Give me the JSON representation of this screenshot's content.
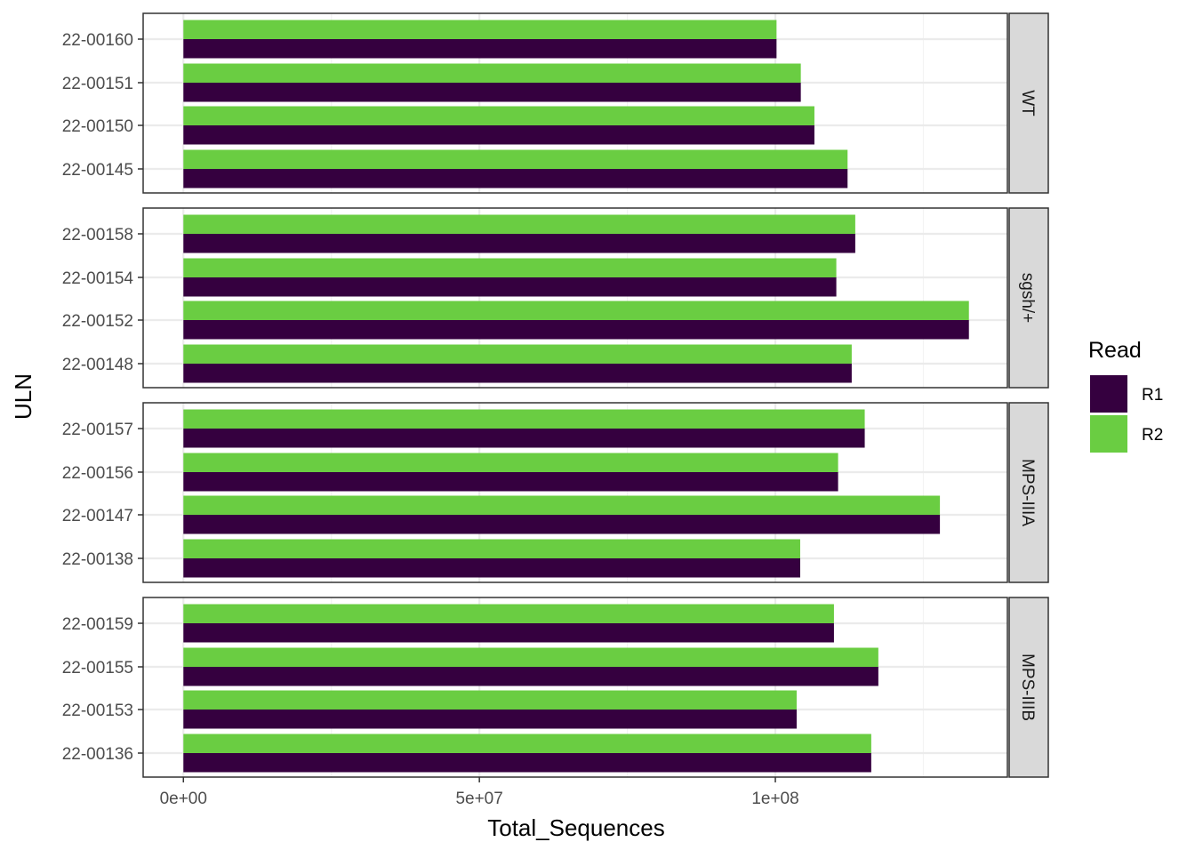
{
  "colors": {
    "R1": "#35003f",
    "R2": "#6acd42",
    "panel_border": "#333333",
    "grid_major": "#ebebeb",
    "grid_minor": "#f3f3f3",
    "strip_fill": "#d9d9d9"
  },
  "chart_data": {
    "type": "bar",
    "orientation": "horizontal",
    "xlabel": "Total_Sequences",
    "ylabel": "ULN",
    "xlim": [
      -6800000,
      139200000
    ],
    "x_ticks": [
      0,
      50000000,
      100000000
    ],
    "x_tick_labels": [
      "0e+00",
      "5e+07",
      "1e+08"
    ],
    "grid": true,
    "legend": {
      "title": "Read",
      "placement": "right",
      "entries": [
        "R1",
        "R2"
      ]
    },
    "panels": [
      {
        "label": "WT",
        "samples": [
          {
            "id": "22-00160",
            "R1": 100200000,
            "R2": 100200000
          },
          {
            "id": "22-00151",
            "R1": 104300000,
            "R2": 104300000
          },
          {
            "id": "22-00150",
            "R1": 106600000,
            "R2": 106600000
          },
          {
            "id": "22-00145",
            "R1": 112200000,
            "R2": 112200000
          }
        ]
      },
      {
        "label": "sgsh/+",
        "samples": [
          {
            "id": "22-00158",
            "R1": 113500000,
            "R2": 113500000
          },
          {
            "id": "22-00154",
            "R1": 110300000,
            "R2": 110300000
          },
          {
            "id": "22-00152",
            "R1": 132700000,
            "R2": 132700000
          },
          {
            "id": "22-00148",
            "R1": 112900000,
            "R2": 112900000
          }
        ]
      },
      {
        "label": "MPS-IIIA",
        "samples": [
          {
            "id": "22-00157",
            "R1": 115100000,
            "R2": 115100000
          },
          {
            "id": "22-00156",
            "R1": 110600000,
            "R2": 110600000
          },
          {
            "id": "22-00147",
            "R1": 127800000,
            "R2": 127800000
          },
          {
            "id": "22-00138",
            "R1": 104200000,
            "R2": 104200000
          }
        ]
      },
      {
        "label": "MPS-IIIB",
        "samples": [
          {
            "id": "22-00159",
            "R1": 109900000,
            "R2": 109900000
          },
          {
            "id": "22-00155",
            "R1": 117400000,
            "R2": 117400000
          },
          {
            "id": "22-00153",
            "R1": 103600000,
            "R2": 103600000
          },
          {
            "id": "22-00136",
            "R1": 116200000,
            "R2": 116200000
          }
        ]
      }
    ]
  }
}
